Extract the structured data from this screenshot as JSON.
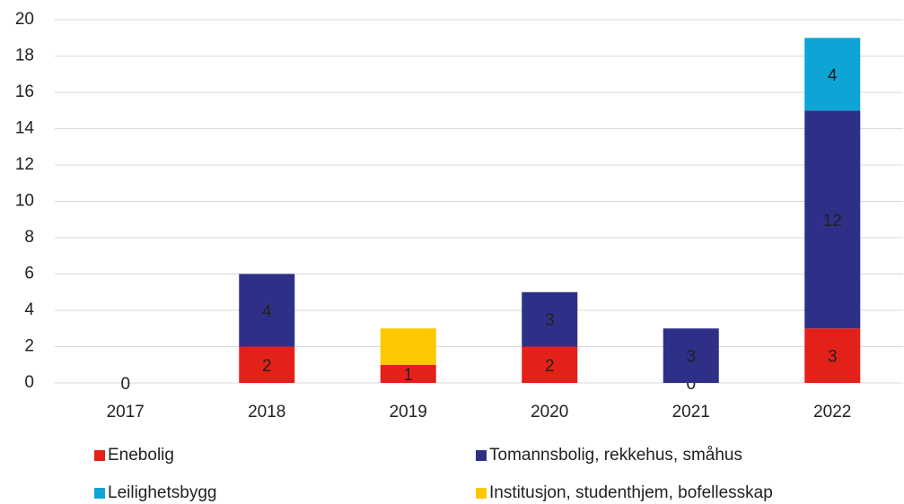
{
  "chart_data": {
    "type": "stacked_bar",
    "categories": [
      "2017",
      "2018",
      "2019",
      "2020",
      "2021",
      "2022"
    ],
    "series": [
      {
        "name": "Enebolig",
        "color": "#e32119",
        "values": [
          0,
          2,
          1,
          2,
          0,
          3
        ],
        "value_labels": [
          "0",
          "2",
          "1",
          "2",
          "0",
          "3"
        ]
      },
      {
        "name": "Tomannsbolig, rekkehus, småhus",
        "color": "#2e3087",
        "values": [
          0,
          4,
          0,
          3,
          3,
          12
        ],
        "value_labels": [
          null,
          "4",
          null,
          "3",
          "3",
          "12"
        ]
      },
      {
        "name": "Leilighetsbygg",
        "color": "#0ea5d6",
        "values": [
          0,
          0,
          0,
          0,
          0,
          4
        ],
        "value_labels": [
          null,
          null,
          null,
          null,
          null,
          "4"
        ]
      },
      {
        "name": "Institusjon, studenthjem, bofellesskap",
        "color": "#fcc800",
        "values": [
          0,
          0,
          2,
          0,
          0,
          0
        ],
        "value_labels": [
          null,
          null,
          null,
          null,
          null,
          null
        ]
      }
    ],
    "ylim": [
      0,
      20
    ],
    "yticks": [
      0,
      2,
      4,
      6,
      8,
      10,
      12,
      14,
      16,
      18,
      20
    ],
    "grid": true
  }
}
